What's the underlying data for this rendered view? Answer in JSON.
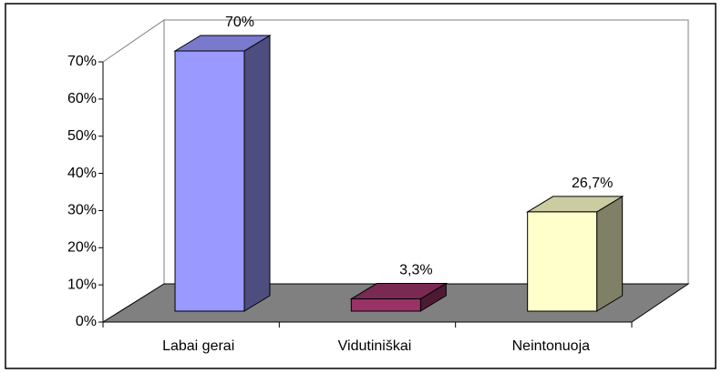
{
  "chart_data": {
    "type": "bar3d",
    "categories": [
      "Labai gerai",
      "Vidutiniškai",
      "Neintonuoja"
    ],
    "values": [
      70,
      3.3,
      26.7
    ],
    "value_labels": [
      "70%",
      "3,3%",
      "26,7%"
    ],
    "colors": [
      "#9999ff",
      "#993366",
      "#ffffcc"
    ],
    "ylim": [
      0,
      70
    ],
    "yticks": [
      {
        "value": 0,
        "label": "0%"
      },
      {
        "value": 10,
        "label": "10%"
      },
      {
        "value": 20,
        "label": "20%"
      },
      {
        "value": 30,
        "label": "30%"
      },
      {
        "value": 40,
        "label": "40%"
      },
      {
        "value": 50,
        "label": "50%"
      },
      {
        "value": 60,
        "label": "60%"
      },
      {
        "value": 70,
        "label": "70%"
      }
    ]
  }
}
